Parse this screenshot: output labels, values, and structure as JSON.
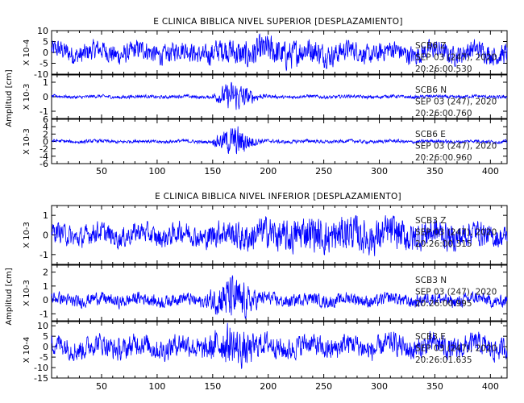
{
  "chart_data": [
    {
      "type": "line",
      "title": "E CLINICA BIBLICA NIVEL SUPERIOR [DESPLAZAMIENTO]",
      "ylabel": "Amplitud [cm]",
      "x_ticks": [
        50,
        100,
        150,
        200,
        250,
        300,
        350,
        400
      ],
      "xlim": [
        5,
        415
      ],
      "line_color": "#0000ff",
      "panels": [
        {
          "scale_label": "X 10-4",
          "ylim": [
            -10,
            10
          ],
          "y_ticks": [
            -10,
            -5,
            0,
            5,
            10
          ],
          "info": [
            "SCB6 Z",
            "SEP 03 (247), 2020",
            "20:26:00.530"
          ],
          "envelope": {
            "base": 6,
            "peak_x": [
              160,
              240
            ],
            "peak": 9
          }
        },
        {
          "scale_label": "X 10-3",
          "ylim": [
            -1.5,
            1.5
          ],
          "y_ticks": [
            -1,
            0,
            1
          ],
          "info": [
            "SCB6 N",
            "SEP 03 (247), 2020",
            "20:26:00.760"
          ],
          "envelope": {
            "base": 0.15,
            "peak_x": [
              165,
              175
            ],
            "peak": 1.4
          }
        },
        {
          "scale_label": "X 10-3",
          "ylim": [
            -6,
            6
          ],
          "y_ticks": [
            -6,
            -4,
            -2,
            0,
            2,
            4,
            6
          ],
          "info": [
            "SCB6 E",
            "SEP 03 (247), 2020",
            "20:26:00.960"
          ],
          "envelope": {
            "base": 0.6,
            "peak_x": [
              165,
              175
            ],
            "peak": 5.5
          }
        }
      ]
    },
    {
      "type": "line",
      "title": "E CLINICA BIBLICA NIVEL INFERIOR [DESPLAZAMIENTO]",
      "ylabel": "Amplitud [cm]",
      "x_ticks": [
        50,
        100,
        150,
        200,
        250,
        300,
        350,
        400
      ],
      "xlim": [
        5,
        415
      ],
      "line_color": "#0000ff",
      "panels": [
        {
          "scale_label": "X 10-3",
          "ylim": [
            -1.5,
            1.5
          ],
          "y_ticks": [
            -1,
            0,
            1
          ],
          "info": [
            "SCB3 Z",
            "SEP 03 (247), 2020",
            "20:26:00.315"
          ],
          "envelope": {
            "base": 0.7,
            "peak_x": [
              160,
              370
            ],
            "peak": 1.2
          }
        },
        {
          "scale_label": "X 10-3",
          "ylim": [
            -1.5,
            2.5
          ],
          "y_ticks": [
            -1,
            0,
            1,
            2
          ],
          "info": [
            "SCB3 N",
            "SEP 03 (247), 2020",
            "20:26:00.995"
          ],
          "envelope": {
            "base": 0.6,
            "peak_x": [
              160,
              175
            ],
            "peak": 2.2
          }
        },
        {
          "scale_label": "X 10-4",
          "ylim": [
            -15,
            12
          ],
          "y_ticks": [
            -15,
            -10,
            -5,
            0,
            5,
            10
          ],
          "info": [
            "SCB3 E",
            "SEP 03 (247), 2020",
            "20:26:01.635"
          ],
          "envelope": {
            "base": 7,
            "peak_x": [
              160,
              175
            ],
            "peak": 13
          }
        }
      ]
    }
  ]
}
